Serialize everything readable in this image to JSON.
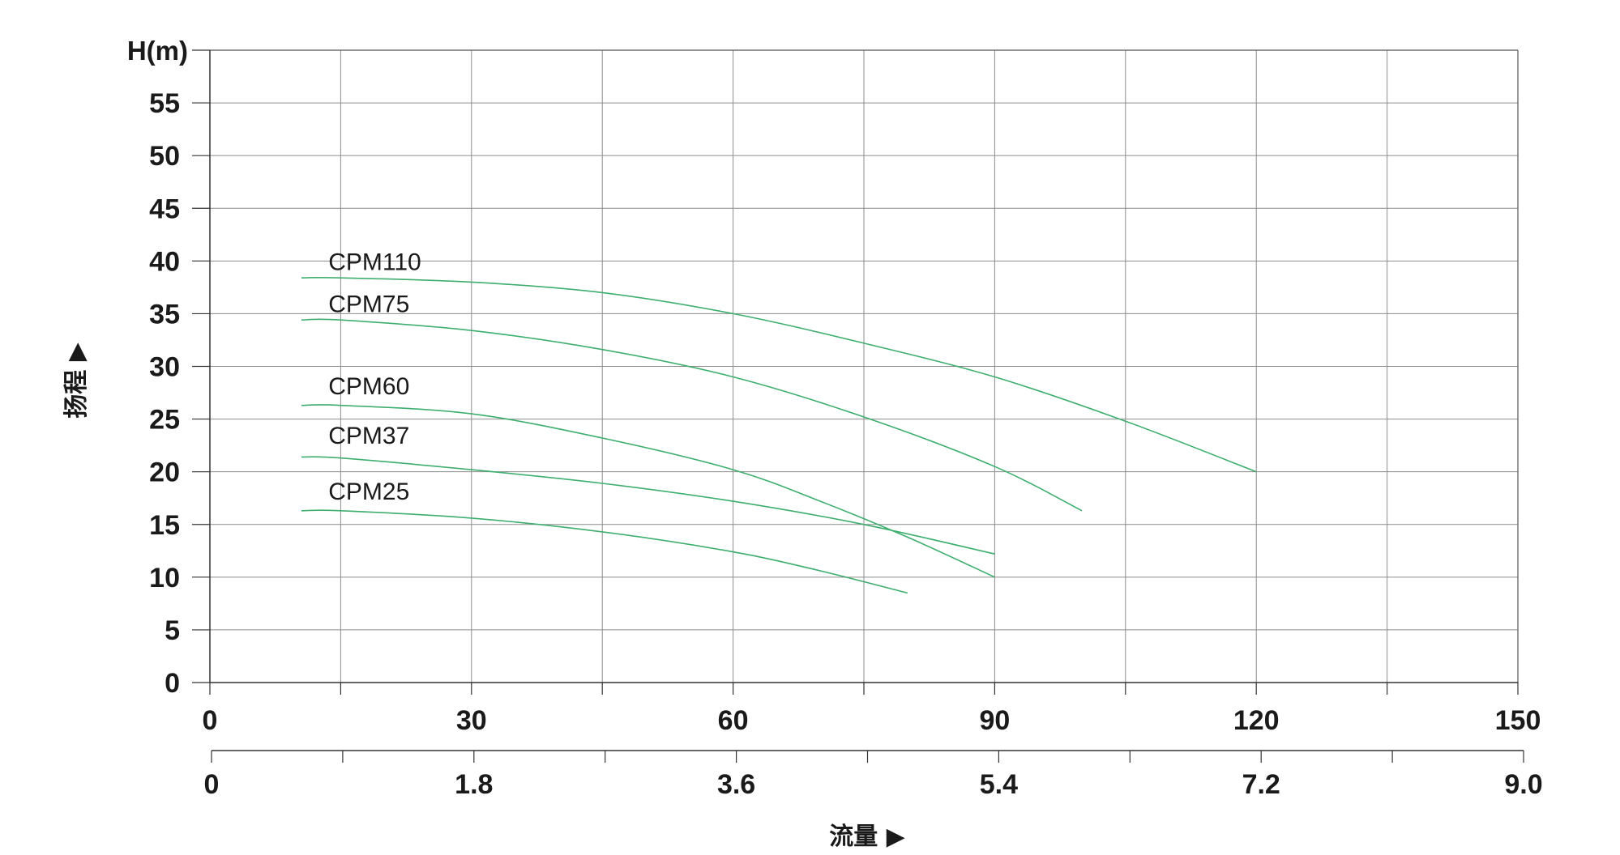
{
  "chart_data": {
    "type": "line",
    "ylabel_unit": "H(m)",
    "ylabel": "扬程 ▶",
    "xlabel": "流量 ▶",
    "grid": true,
    "ylim": [
      0,
      60
    ],
    "yticks": [
      "0",
      "5",
      "10",
      "15",
      "20",
      "25",
      "30",
      "35",
      "40",
      "45",
      "50",
      "55"
    ],
    "xlim": [
      0,
      150
    ],
    "x_primary_ticks": [
      {
        "value": 0,
        "label": "0"
      },
      {
        "value": 30,
        "label": "30"
      },
      {
        "value": 60,
        "label": "60"
      },
      {
        "value": 90,
        "label": "90"
      },
      {
        "value": 120,
        "label": "120"
      },
      {
        "value": 150,
        "label": "150"
      }
    ],
    "x_secondary_ticks": [
      {
        "value": 0,
        "label": "0"
      },
      {
        "value": 30,
        "label": "1.8"
      },
      {
        "value": 60,
        "label": "3.6"
      },
      {
        "value": 90,
        "label": "5.4"
      },
      {
        "value": 120,
        "label": "7.2"
      },
      {
        "value": 150,
        "label": "9.0"
      }
    ],
    "line_color": "#3dae6e",
    "series": [
      {
        "name": "CPM110",
        "label_at": [
          13.5,
          40
        ],
        "points": [
          [
            10.5,
            38.4
          ],
          [
            15,
            38.4
          ],
          [
            30,
            38.0
          ],
          [
            45,
            37.0
          ],
          [
            60,
            35.0
          ],
          [
            75,
            32.2
          ],
          [
            90,
            29.0
          ],
          [
            105,
            24.8
          ],
          [
            120,
            20.0
          ]
        ]
      },
      {
        "name": "CPM75",
        "label_at": [
          13.5,
          36
        ],
        "points": [
          [
            10.5,
            34.4
          ],
          [
            15,
            34.4
          ],
          [
            30,
            33.4
          ],
          [
            45,
            31.6
          ],
          [
            60,
            29.0
          ],
          [
            75,
            25.2
          ],
          [
            90,
            20.5
          ],
          [
            100,
            16.3
          ]
        ]
      },
      {
        "name": "CPM60",
        "label_at": [
          13.5,
          28.2
        ],
        "points": [
          [
            10.5,
            26.3
          ],
          [
            15,
            26.3
          ],
          [
            30,
            25.5
          ],
          [
            45,
            23.2
          ],
          [
            60,
            20.2
          ],
          [
            70,
            17.2
          ],
          [
            80,
            13.8
          ],
          [
            90,
            10.0
          ]
        ]
      },
      {
        "name": "CPM37",
        "label_at": [
          13.5,
          23.5
        ],
        "points": [
          [
            10.5,
            21.4
          ],
          [
            15,
            21.3
          ],
          [
            30,
            20.2
          ],
          [
            45,
            18.9
          ],
          [
            60,
            17.2
          ],
          [
            75,
            15.0
          ],
          [
            90,
            12.2
          ]
        ]
      },
      {
        "name": "CPM25",
        "label_at": [
          13.5,
          18.2
        ],
        "points": [
          [
            10.5,
            16.3
          ],
          [
            15,
            16.3
          ],
          [
            30,
            15.6
          ],
          [
            45,
            14.3
          ],
          [
            60,
            12.4
          ],
          [
            70,
            10.6
          ],
          [
            80,
            8.5
          ]
        ]
      }
    ]
  }
}
